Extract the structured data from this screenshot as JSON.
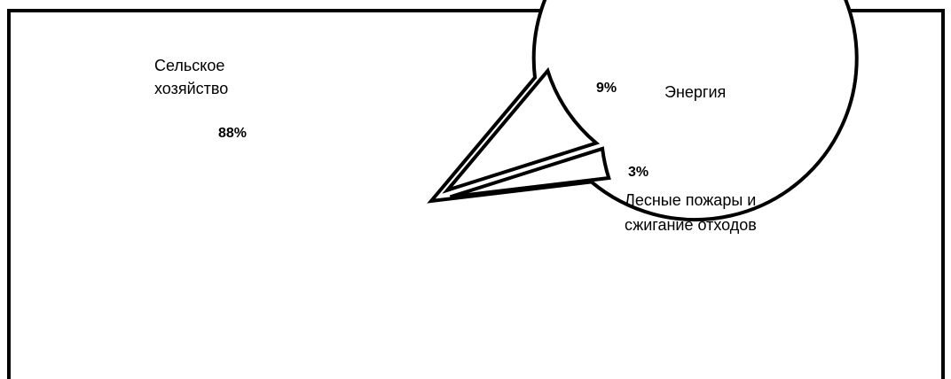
{
  "chart_data": {
    "type": "pie",
    "slices": [
      {
        "label_lines": [
          "Сельское",
          "хозяйство"
        ],
        "value": 88,
        "value_label": "88%"
      },
      {
        "label_lines": [
          "Энергия"
        ],
        "value": 9,
        "value_label": "9%"
      },
      {
        "label_lines": [
          "Лесные пожары и",
          "сжигание отходов"
        ],
        "value": 3,
        "value_label": "3%"
      }
    ],
    "exploded": true,
    "fill_color": "#ffffff",
    "stroke_color": "#000000"
  }
}
